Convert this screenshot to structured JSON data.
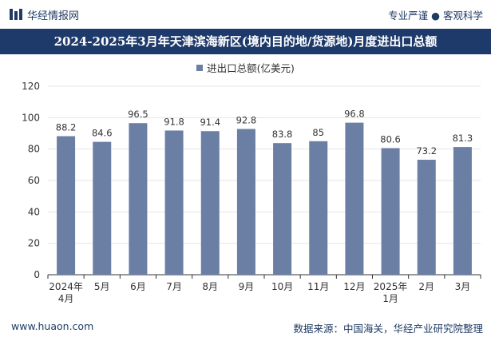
{
  "header": {
    "logo_text": "华经情报网",
    "slogan": "专业严谨 ● 客观科学"
  },
  "colors": {
    "title_bg": "#1e3a6a",
    "bar": "#6b7ea3",
    "axis": "#333333",
    "grid": "#e6e6e6"
  },
  "footer": {
    "site": "www.huaon.com",
    "source": "数据来源：中国海关，华经产业研究院整理"
  },
  "chart_data": {
    "type": "bar",
    "title": "2024-2025年3月年天津滨海新区(境内目的地/货源地)月度进出口总额",
    "legend": "进出口总额(亿美元)",
    "xlabel": "",
    "ylabel": "",
    "ylim": [
      0,
      120
    ],
    "yticks": [
      0,
      20,
      40,
      60,
      80,
      100,
      120
    ],
    "grid": true,
    "categories": [
      [
        "2024年",
        "4月"
      ],
      [
        "5月"
      ],
      [
        "6月"
      ],
      [
        "7月"
      ],
      [
        "8月"
      ],
      [
        "9月"
      ],
      [
        "10月"
      ],
      [
        "11月"
      ],
      [
        "12月"
      ],
      [
        "2025年",
        "1月"
      ],
      [
        "2月"
      ],
      [
        "3月"
      ]
    ],
    "values": [
      88.2,
      84.6,
      96.5,
      91.8,
      91.4,
      92.8,
      83.8,
      85,
      96.8,
      80.6,
      73.2,
      81.3
    ]
  }
}
